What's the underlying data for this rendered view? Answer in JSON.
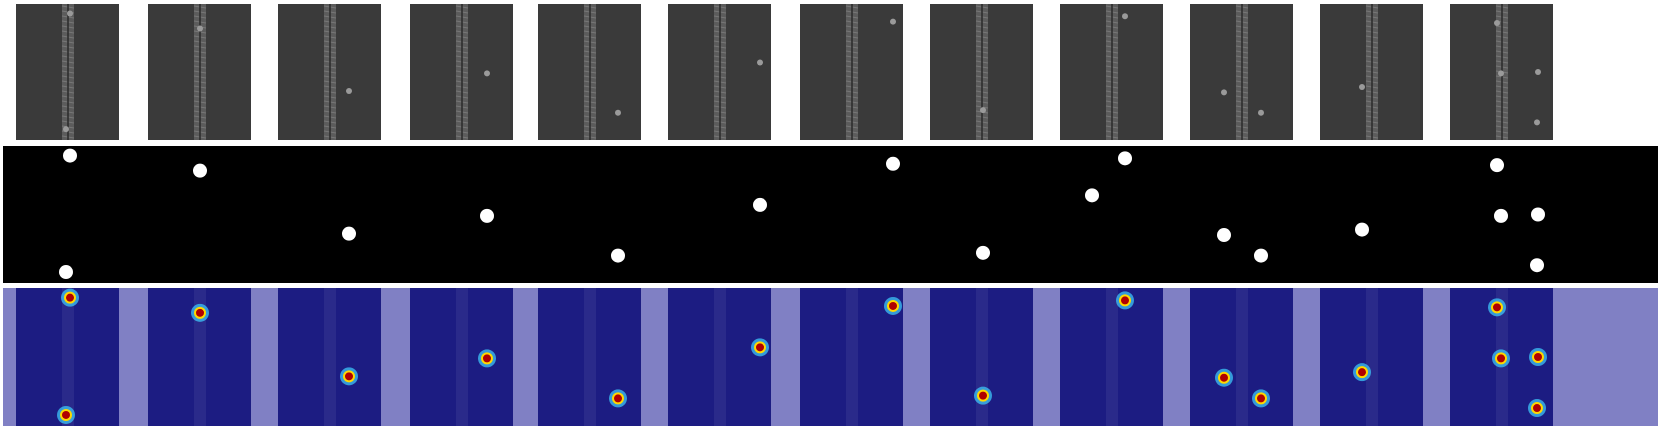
{
  "figure": {
    "rows": [
      "zipper-images",
      "ground-truth-masks",
      "anomaly-heatmaps"
    ],
    "sample_count": 12,
    "colors": {
      "fabric": "#3a3a3a",
      "teeth": "#5c5c5c",
      "mask_bg": "#000000",
      "mask_fg": "#ffffff",
      "heatmap_bg": "#1c1c82",
      "heatmap_gap": "#8080c4",
      "hot_outer": "#3fd0ff",
      "hot_mid": "#ffd800",
      "hot_core": "#b00000"
    }
  }
}
